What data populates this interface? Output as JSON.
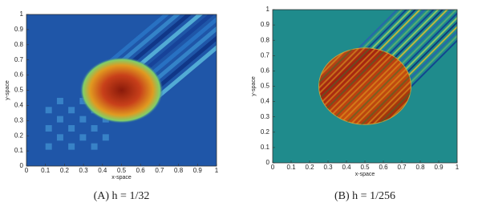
{
  "chart_data": [
    {
      "type": "heatmap",
      "caption": "(A) h = 1/32",
      "xlabel": "x-space",
      "ylabel": "y-space",
      "xlim": [
        0,
        1
      ],
      "ylim": [
        0,
        1
      ],
      "xticks": [
        0,
        0.1,
        0.2,
        0.3,
        0.4,
        0.5,
        0.6,
        0.7,
        0.8,
        0.9,
        1
      ],
      "yticks": [
        0,
        0.1,
        0.2,
        0.3,
        0.4,
        0.5,
        0.6,
        0.7,
        0.8,
        0.9,
        1
      ]
    },
    {
      "type": "heatmap",
      "caption": "(B) h = 1/256",
      "xlabel": "x-space",
      "ylabel": "y-space",
      "xlim": [
        0,
        1
      ],
      "ylim": [
        0,
        1
      ],
      "xticks": [
        0,
        0.1,
        0.2,
        0.3,
        0.4,
        0.5,
        0.6,
        0.7,
        0.8,
        0.9,
        1
      ],
      "yticks": [
        0,
        0.1,
        0.2,
        0.3,
        0.4,
        0.5,
        0.6,
        0.7,
        0.8,
        0.9,
        1
      ]
    }
  ]
}
